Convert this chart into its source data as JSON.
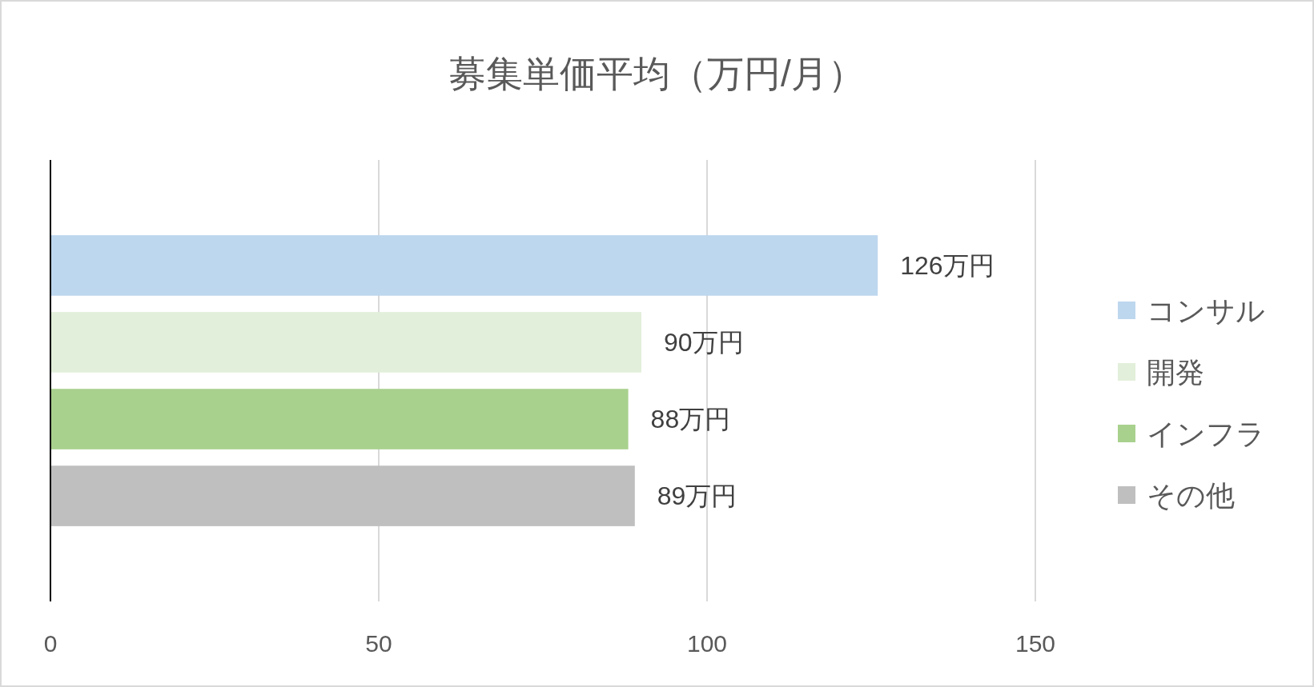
{
  "chart_data": {
    "type": "bar",
    "orientation": "horizontal",
    "title": "募集単価平均（万円/月）",
    "categories": [
      null
    ],
    "series": [
      {
        "name": "コンサル",
        "color": "#bdd7ee",
        "values": [
          126
        ],
        "value_labels": [
          "126万円"
        ]
      },
      {
        "name": "開発",
        "color": "#e2efda",
        "values": [
          90
        ],
        "value_labels": [
          "90万円"
        ]
      },
      {
        "name": "インフラ",
        "color": "#a9d18e",
        "values": [
          88
        ],
        "value_labels": [
          "88万円"
        ]
      },
      {
        "name": "その他",
        "color": "#bfbfbf",
        "values": [
          89
        ],
        "value_labels": [
          "89万円"
        ]
      }
    ],
    "xlim": [
      0,
      150
    ],
    "xticks": [
      0,
      50,
      100,
      150
    ],
    "grid": "x",
    "legend": "right"
  }
}
